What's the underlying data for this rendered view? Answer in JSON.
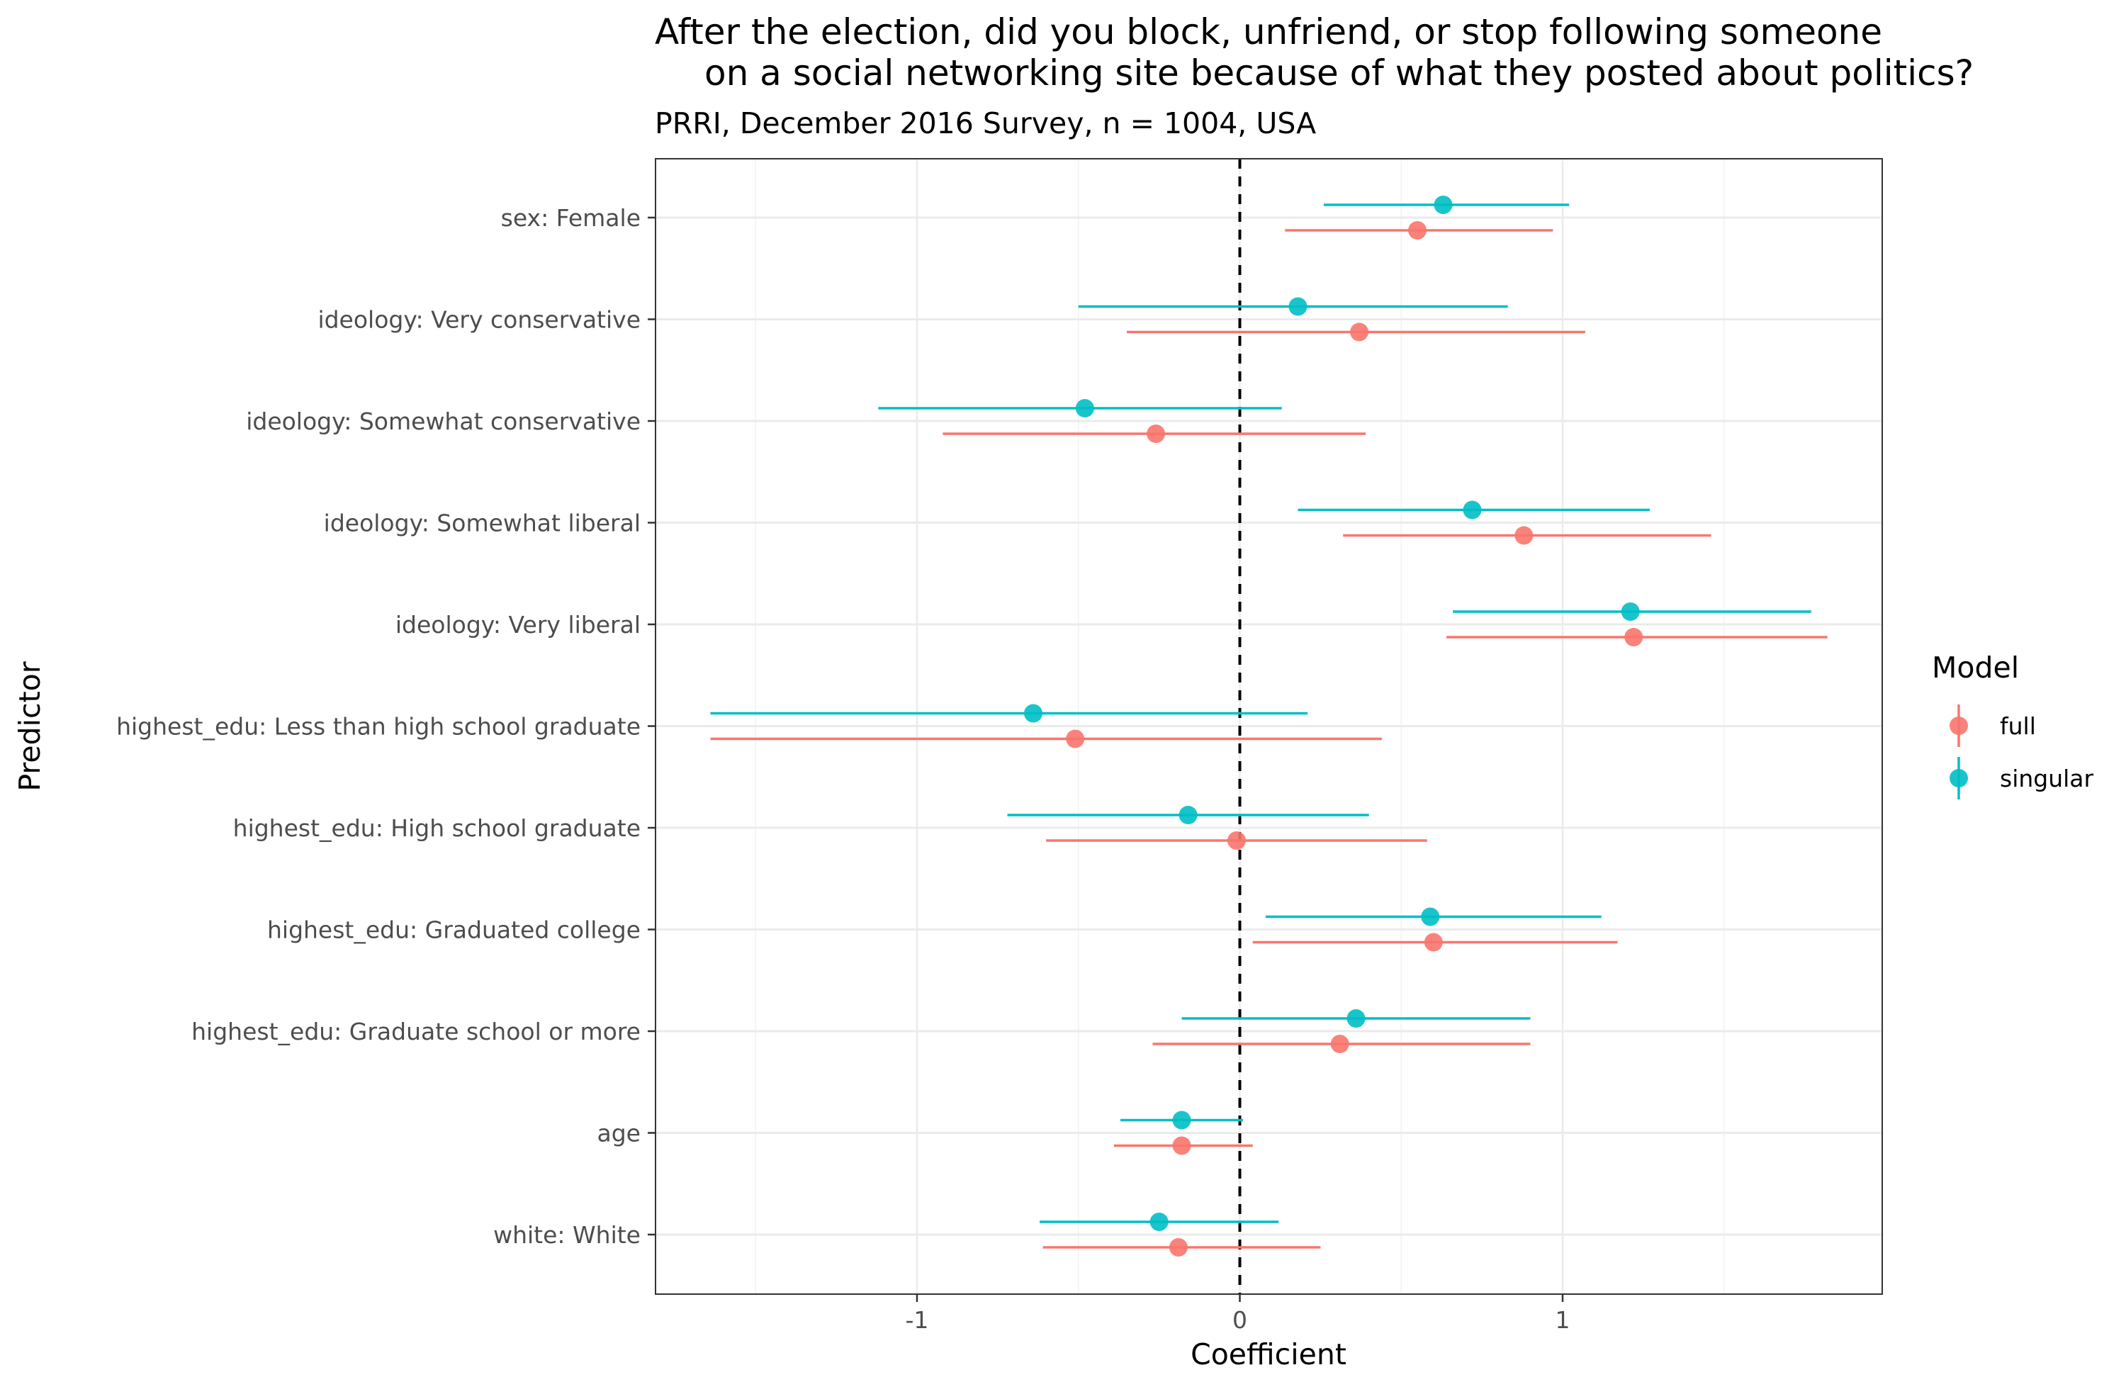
{
  "chart_data": {
    "type": "scatter",
    "title_line1": "After the election, did you block, unfriend, or stop following someone",
    "title_line2": "on a social networking site because of what they posted about politics?",
    "subtitle": "PRRI, December 2016 Survey, n = 1004, USA",
    "xlabel": "Coefficient",
    "ylabel": "Predictor",
    "xlim": [
      -1.81,
      1.99
    ],
    "x_ticks": [
      -1,
      0,
      1
    ],
    "x_tick_labels": [
      "-1",
      "0",
      "1"
    ],
    "reference_line": 0,
    "grid": true,
    "legend_title": "Model",
    "legend_position": "right",
    "categories": [
      "sex: Female",
      "ideology: Very conservative",
      "ideology: Somewhat conservative",
      "ideology: Somewhat liberal",
      "ideology: Very liberal",
      "highest_edu: Less than high school graduate",
      "highest_edu: High school graduate",
      "highest_edu: Graduated college",
      "highest_edu: Graduate school or more",
      "age",
      "white: White"
    ],
    "series": [
      {
        "name": "full",
        "color": "#F8766D",
        "estimate": [
          0.55,
          0.37,
          -0.26,
          0.88,
          1.22,
          -0.51,
          -0.01,
          0.6,
          0.31,
          -0.18,
          -0.19
        ],
        "lower": [
          0.14,
          -0.35,
          -0.92,
          0.32,
          0.64,
          -1.64,
          -0.6,
          0.04,
          -0.27,
          -0.39,
          -0.61
        ],
        "upper": [
          0.97,
          1.07,
          0.39,
          1.46,
          1.82,
          0.44,
          0.58,
          1.17,
          0.9,
          0.04,
          0.25
        ]
      },
      {
        "name": "singular",
        "color": "#00BFC4",
        "estimate": [
          0.63,
          0.18,
          -0.48,
          0.72,
          1.21,
          -0.64,
          -0.16,
          0.59,
          0.36,
          -0.18,
          -0.25
        ],
        "lower": [
          0.26,
          -0.5,
          -1.12,
          0.18,
          0.66,
          -1.64,
          -0.72,
          0.08,
          -0.18,
          -0.37,
          -0.62
        ],
        "upper": [
          1.02,
          0.83,
          0.13,
          1.27,
          1.77,
          0.21,
          0.4,
          1.12,
          0.9,
          0.01,
          0.12
        ]
      }
    ]
  }
}
